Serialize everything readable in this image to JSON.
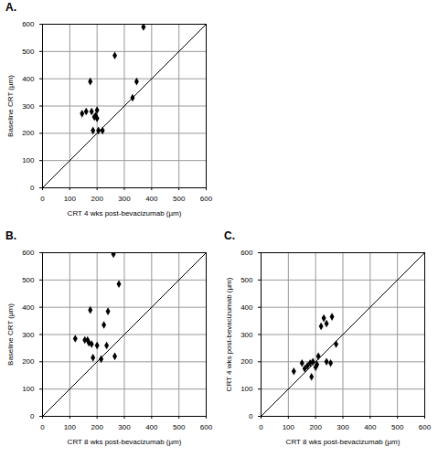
{
  "chart_data": [
    {
      "type": "scatter",
      "title": "A.",
      "x": [
        145,
        160,
        175,
        180,
        185,
        190,
        195,
        200,
        200,
        205,
        220,
        265,
        330,
        345,
        370
      ],
      "values": [
        272,
        280,
        390,
        280,
        210,
        260,
        265,
        285,
        255,
        210,
        210,
        485,
        330,
        390,
        590
      ],
      "xlabel": "CRT 4 wks post-bevacizumab (µm)",
      "ylabel": "Baseline CRT (µm)",
      "xlim": [
        0,
        600
      ],
      "ylim": [
        0,
        600
      ],
      "xticks": [
        0,
        100,
        200,
        300,
        400,
        500,
        600
      ],
      "yticks": [
        0,
        100,
        200,
        300,
        400,
        500,
        600
      ],
      "grid": true,
      "color": "#000000",
      "marker": "diamond"
    },
    {
      "type": "scatter",
      "title": "B.",
      "x": [
        120,
        155,
        165,
        170,
        175,
        180,
        185,
        200,
        215,
        225,
        235,
        240,
        260,
        265,
        280
      ],
      "values": [
        285,
        280,
        280,
        270,
        390,
        265,
        215,
        260,
        210,
        335,
        260,
        385,
        595,
        220,
        485
      ],
      "xlabel": "CRT 8 wks post-bevacizumab (µm)",
      "ylabel": "Baseline CRT (µm)",
      "xlim": [
        0,
        600
      ],
      "ylim": [
        0,
        600
      ],
      "xticks": [
        0,
        100,
        200,
        300,
        400,
        500,
        600
      ],
      "yticks": [
        0,
        100,
        200,
        300,
        400,
        500,
        600
      ],
      "grid": true,
      "color": "#000000",
      "marker": "diamond"
    },
    {
      "type": "scatter",
      "title": "C.",
      "x": [
        120,
        150,
        160,
        170,
        180,
        185,
        190,
        200,
        205,
        210,
        220,
        230,
        240,
        240,
        255,
        260,
        275
      ],
      "values": [
        165,
        195,
        175,
        185,
        195,
        145,
        200,
        180,
        190,
        220,
        330,
        360,
        340,
        200,
        195,
        365,
        265
      ],
      "xlabel": "CRT 8 wks post-bevacizumab (µm)",
      "ylabel": "CRT 4 wks post-bevacizumab (µm)",
      "xlim": [
        0,
        600
      ],
      "ylim": [
        0,
        600
      ],
      "xticks": [
        0,
        100,
        200,
        300,
        400,
        500,
        600
      ],
      "yticks": [
        0,
        100,
        200,
        300,
        400,
        500,
        600
      ],
      "grid": true,
      "color": "#000000",
      "marker": "diamond"
    }
  ]
}
